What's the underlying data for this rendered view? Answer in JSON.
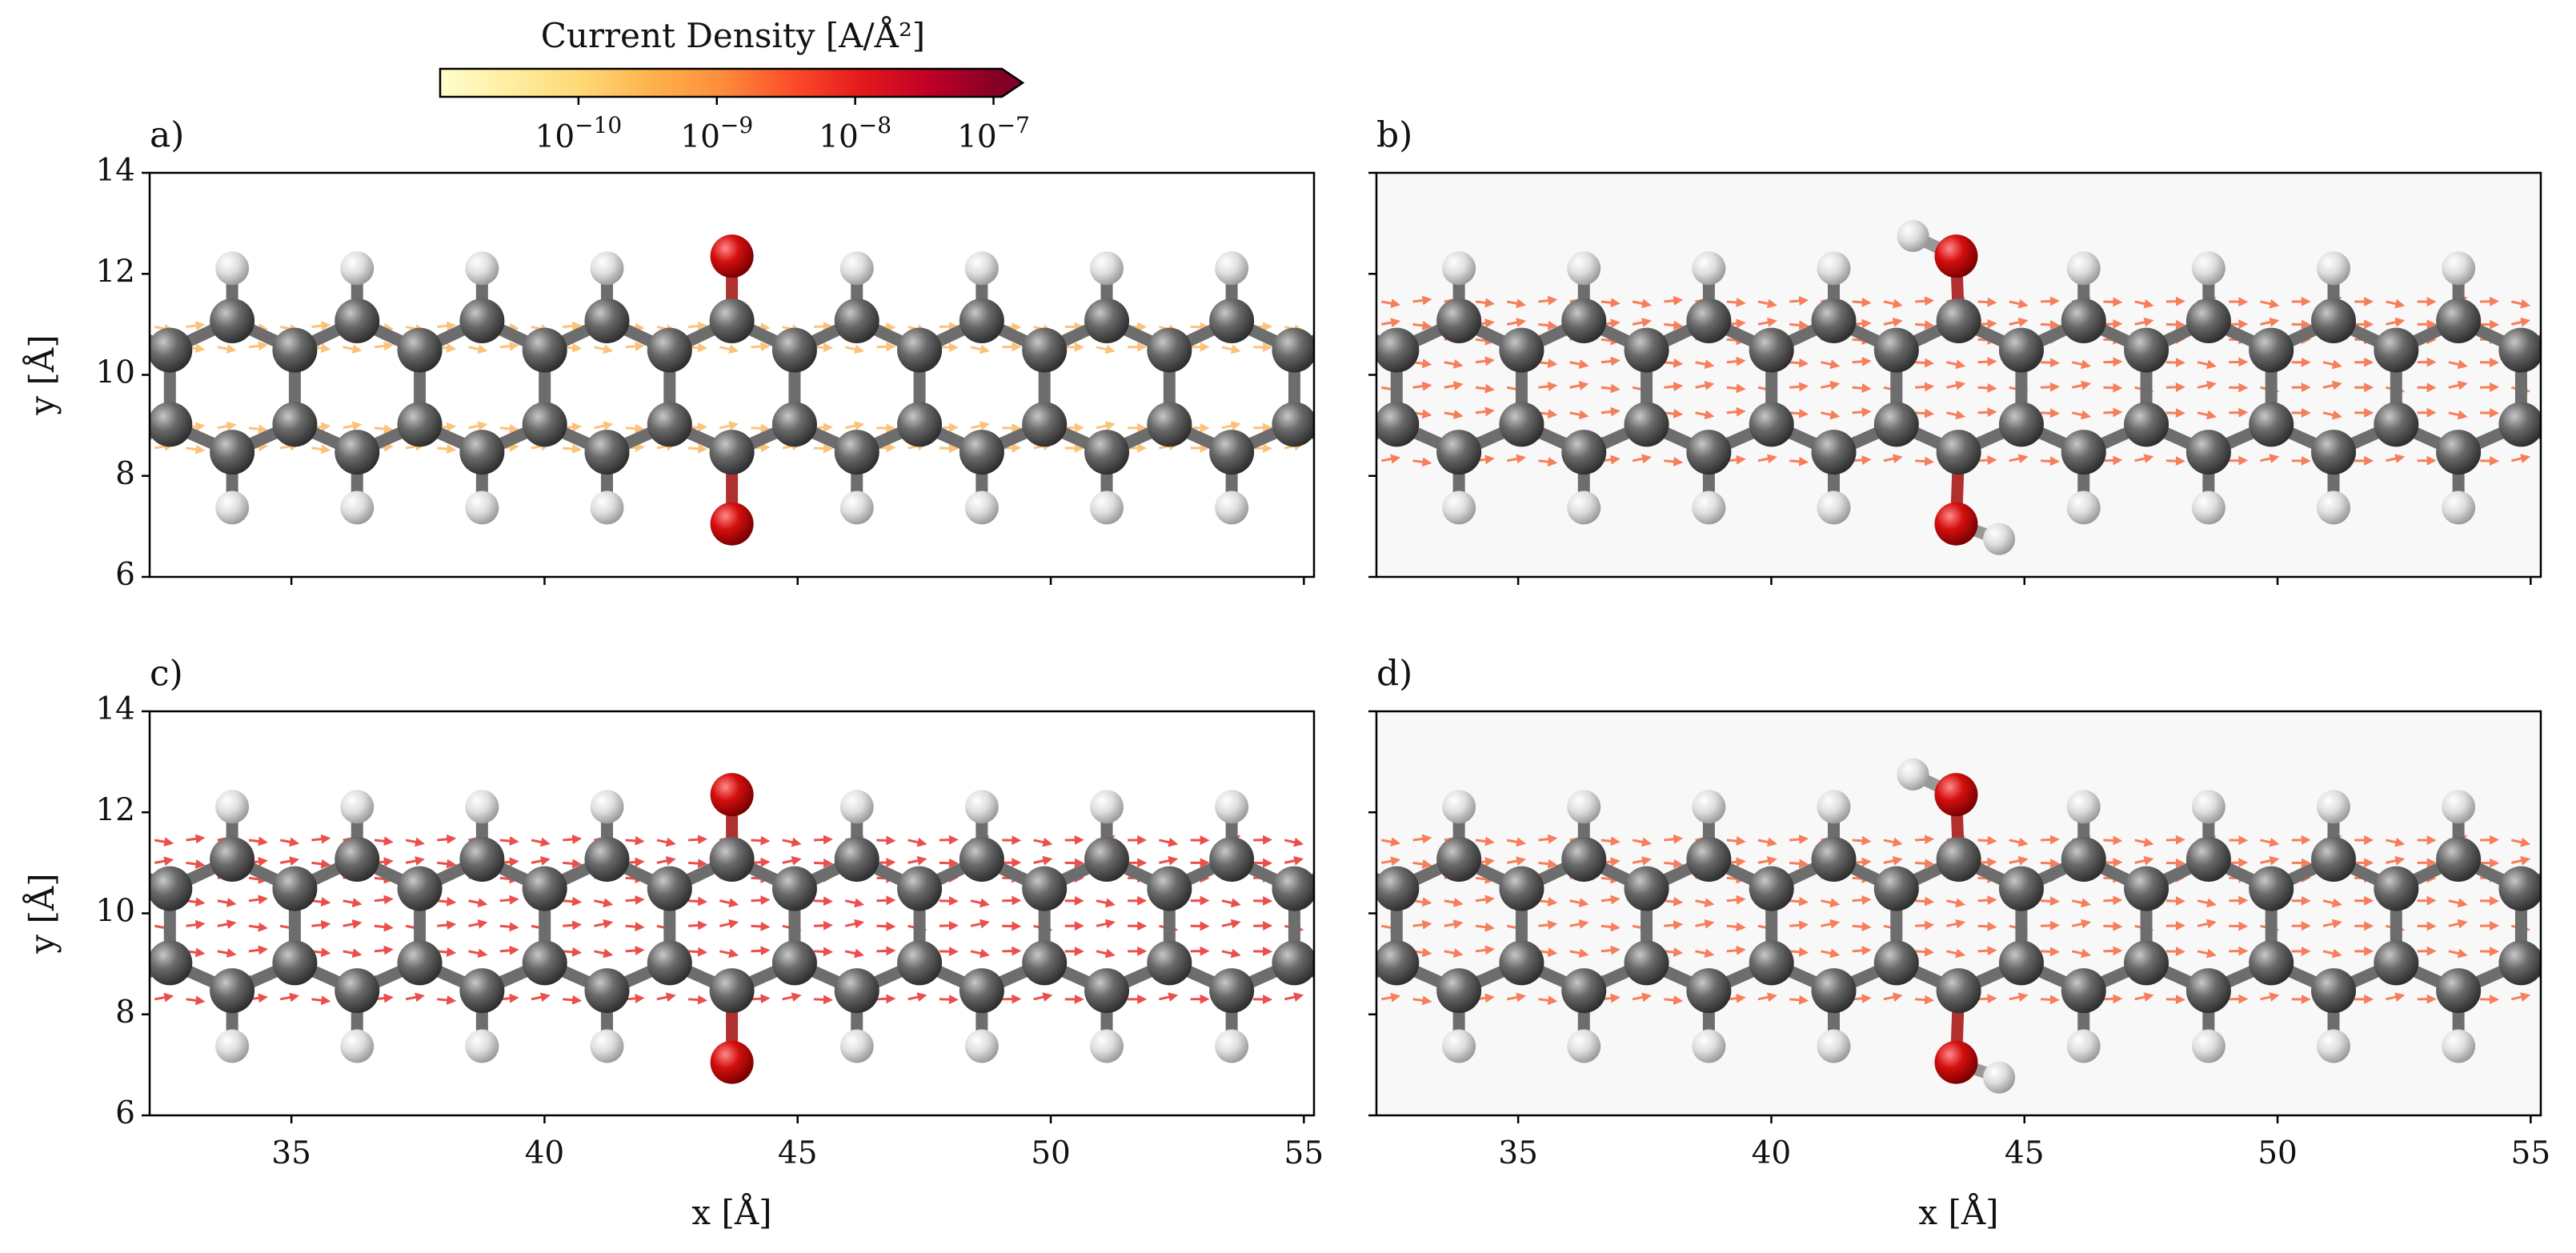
{
  "colorbar": {
    "label": "Current Density [A/Å²]",
    "scale": "log",
    "lim": [
      1e-11,
      1.15e-07
    ],
    "extend": "max",
    "colors": [
      "#ffffcc",
      "#ffeda0",
      "#fed976",
      "#feb24c",
      "#fd8d3c",
      "#fc4e2a",
      "#e31a1c",
      "#bd0026",
      "#800026"
    ],
    "ticks": [
      {
        "value": 1e-10,
        "label": "10−10"
      },
      {
        "value": 1e-09,
        "label": "10−9"
      },
      {
        "value": 1e-08,
        "label": "10−8"
      },
      {
        "value": 1e-07,
        "label": "10−7"
      }
    ]
  },
  "chart_data": [
    {
      "type": "quiver",
      "title": "a)",
      "ylabel": "y [Å]",
      "xlim": [
        32.2,
        55.2
      ],
      "ylim": [
        6,
        14
      ],
      "xticks": [
        35,
        40,
        45,
        50,
        55
      ],
      "yticks": [
        6,
        8,
        10,
        12,
        14
      ],
      "show_xticklabels": false,
      "show_yticklabels": true,
      "color": "#fdb863",
      "background": "#ffffff"
    },
    {
      "type": "quiver",
      "title": "b)",
      "xlim": [
        32.2,
        55.2
      ],
      "ylim": [
        6,
        14
      ],
      "xticks": [
        35,
        40,
        45,
        50,
        55
      ],
      "yticks": [
        6,
        8,
        10,
        12,
        14
      ],
      "show_xticklabels": false,
      "show_yticklabels": false,
      "color": "#f7693f",
      "background": "#f8f8f8"
    },
    {
      "type": "quiver",
      "title": "c)",
      "xlabel": "x [Å]",
      "ylabel": "y [Å]",
      "xlim": [
        32.2,
        55.2
      ],
      "ylim": [
        6,
        14
      ],
      "xticks": [
        35,
        40,
        45,
        50,
        55
      ],
      "yticks": [
        6,
        8,
        10,
        12,
        14
      ],
      "show_xticklabels": true,
      "show_yticklabels": true,
      "color": "#e8312c",
      "background": "#ffffff"
    },
    {
      "type": "quiver",
      "title": "d)",
      "xlabel": "x [Å]",
      "xlim": [
        32.2,
        55.2
      ],
      "ylim": [
        6,
        14
      ],
      "xticks": [
        35,
        40,
        45,
        50,
        55
      ],
      "yticks": [
        6,
        8,
        10,
        12,
        14
      ],
      "show_xticklabels": true,
      "show_yticklabels": false,
      "color": "#f7693f",
      "background": "#f8f8f8"
    }
  ]
}
